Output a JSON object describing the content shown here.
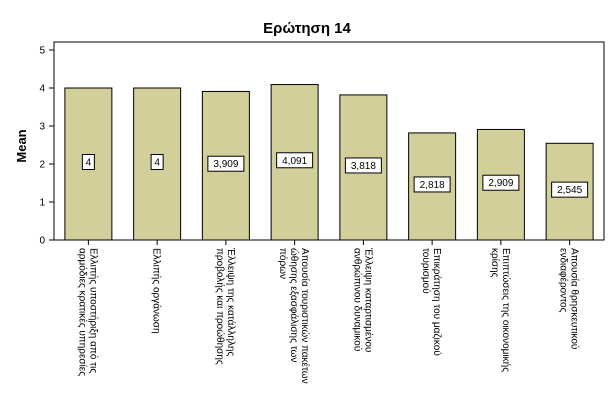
{
  "chart_data": {
    "type": "bar",
    "title": "Ερώτηση 14",
    "xlabel": "",
    "ylabel": "Mean",
    "ylim": [
      0,
      5
    ],
    "yticks": [
      0,
      1,
      2,
      3,
      4,
      5
    ],
    "grid": false,
    "categories": [
      [
        "Ελλιπής υποστήριξη από τις",
        "αρμόδιες κρατικές υπηρεσίες"
      ],
      [
        "Ελλιπής οργάνωση"
      ],
      [
        "Έλλειψη της κατάλληλης",
        "προβολής και προώθησης"
      ],
      [
        "Απουσία τουριστικών πακέτων",
        "ώθησης εξασφάλισης των",
        "πόρων"
      ],
      [
        "Έλλειψη καταρτισμένου",
        "ανθρώπινου δυναμικού"
      ],
      [
        "Επικράτηση του μαζικού",
        "τουρισμού"
      ],
      [
        "Επιπτώσεις της οικονομικής",
        "κρίσης"
      ],
      [
        "Απουσία θρησκευτικού",
        "ενδιαφέροντος"
      ]
    ],
    "values": [
      4,
      4,
      3.909,
      4.091,
      3.818,
      2.818,
      2.909,
      2.545
    ],
    "data_labels": [
      "4",
      "4",
      "3,909",
      "4,091",
      "3,818",
      "2,818",
      "2,909",
      "2,545"
    ],
    "bar_color": "#d3cf9b",
    "bar_edge_color": "#000000"
  }
}
